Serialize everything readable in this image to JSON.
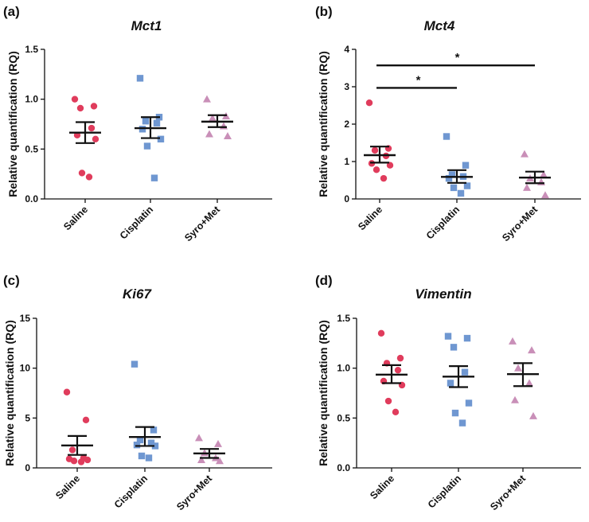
{
  "ylabel": "Relative quantification (RQ)",
  "categories": [
    "Saline",
    "Cisplatin",
    "Syro+Met"
  ],
  "colors": {
    "Saline": "#e03c5c",
    "Cisplatin": "#6f97d1",
    "Syro+Met": "#c98fb8"
  },
  "markers": {
    "Saline": "circle",
    "Cisplatin": "square",
    "Syro+Met": "triangle"
  },
  "chart_data": [
    {
      "type": "scatter",
      "panel": "(a)",
      "title": "Mct1",
      "ylim": [
        0,
        1.5
      ],
      "yticks": [
        0.0,
        0.5,
        1.0,
        1.5
      ],
      "ytick_labels": [
        "0.0",
        "0.5",
        "1.0",
        "1.5"
      ],
      "groups": [
        {
          "name": "Saline",
          "points": [
            1.0,
            0.93,
            0.91,
            0.71,
            0.64,
            0.6,
            0.26,
            0.22
          ],
          "mean": 0.665,
          "sem_low": 0.56,
          "sem_high": 0.77
        },
        {
          "name": "Cisplatin",
          "points": [
            1.21,
            0.82,
            0.78,
            0.76,
            0.7,
            0.6,
            0.53,
            0.21
          ],
          "mean": 0.71,
          "sem_low": 0.61,
          "sem_high": 0.82
        },
        {
          "name": "Syro+Met",
          "points": [
            1.0,
            0.83,
            0.81,
            0.73,
            0.65,
            0.63
          ],
          "mean": 0.775,
          "sem_low": 0.72,
          "sem_high": 0.84
        }
      ],
      "significance": []
    },
    {
      "type": "scatter",
      "panel": "(b)",
      "title": "Mct4",
      "ylim": [
        0,
        4
      ],
      "yticks": [
        0,
        1,
        2,
        3,
        4
      ],
      "ytick_labels": [
        "0",
        "1",
        "2",
        "3",
        "4"
      ],
      "groups": [
        {
          "name": "Saline",
          "points": [
            2.57,
            1.35,
            1.3,
            1.15,
            0.95,
            0.9,
            0.78,
            0.55
          ],
          "mean": 1.17,
          "sem_low": 0.97,
          "sem_high": 1.4
        },
        {
          "name": "Cisplatin",
          "points": [
            1.67,
            0.9,
            0.65,
            0.6,
            0.55,
            0.35,
            0.3,
            0.15
          ],
          "mean": 0.59,
          "sem_low": 0.43,
          "sem_high": 0.77
        },
        {
          "name": "Syro+Met",
          "points": [
            1.2,
            0.65,
            0.55,
            0.45,
            0.3,
            0.1
          ],
          "mean": 0.57,
          "sem_low": 0.42,
          "sem_high": 0.73
        }
      ],
      "significance": [
        {
          "from": "Saline",
          "to": "Cisplatin",
          "y": 2.97,
          "label": "*"
        },
        {
          "from": "Saline",
          "to": "Syro+Met",
          "y": 3.57,
          "label": "*"
        }
      ]
    },
    {
      "type": "scatter",
      "panel": "(c)",
      "title": "Ki67",
      "ylim": [
        0,
        15
      ],
      "yticks": [
        0,
        5,
        10,
        15
      ],
      "ytick_labels": [
        "0",
        "5",
        "10",
        "15"
      ],
      "groups": [
        {
          "name": "Saline",
          "points": [
            7.6,
            4.8,
            1.8,
            1.0,
            0.9,
            0.8,
            0.7,
            0.6
          ],
          "mean": 2.25,
          "sem_low": 1.3,
          "sem_high": 3.2
        },
        {
          "name": "Cisplatin",
          "points": [
            10.4,
            3.8,
            2.8,
            2.5,
            2.3,
            2.2,
            1.2,
            1.0
          ],
          "mean": 3.1,
          "sem_low": 2.2,
          "sem_high": 4.1
        },
        {
          "name": "Syro+Met",
          "points": [
            3.0,
            2.4,
            1.5,
            1.0,
            0.8,
            0.7
          ],
          "mean": 1.45,
          "sem_low": 1.0,
          "sem_high": 1.9
        }
      ],
      "significance": []
    },
    {
      "type": "scatter",
      "panel": "(d)",
      "title": "Vimentin",
      "ylim": [
        0,
        1.5
      ],
      "yticks": [
        0.0,
        0.5,
        1.0,
        1.5
      ],
      "ytick_labels": [
        "0.0",
        "0.5",
        "1.0",
        "1.5"
      ],
      "groups": [
        {
          "name": "Saline",
          "points": [
            1.35,
            1.1,
            1.05,
            0.98,
            0.87,
            0.83,
            0.67,
            0.56
          ],
          "mean": 0.935,
          "sem_low": 0.85,
          "sem_high": 1.03
        },
        {
          "name": "Cisplatin",
          "points": [
            1.32,
            1.3,
            1.21,
            0.96,
            0.85,
            0.65,
            0.55,
            0.45
          ],
          "mean": 0.915,
          "sem_low": 0.81,
          "sem_high": 1.02
        },
        {
          "name": "Syro+Met",
          "points": [
            1.27,
            1.18,
            1.0,
            0.85,
            0.68,
            0.52
          ],
          "mean": 0.94,
          "sem_low": 0.82,
          "sem_high": 1.05
        }
      ],
      "significance": []
    }
  ]
}
